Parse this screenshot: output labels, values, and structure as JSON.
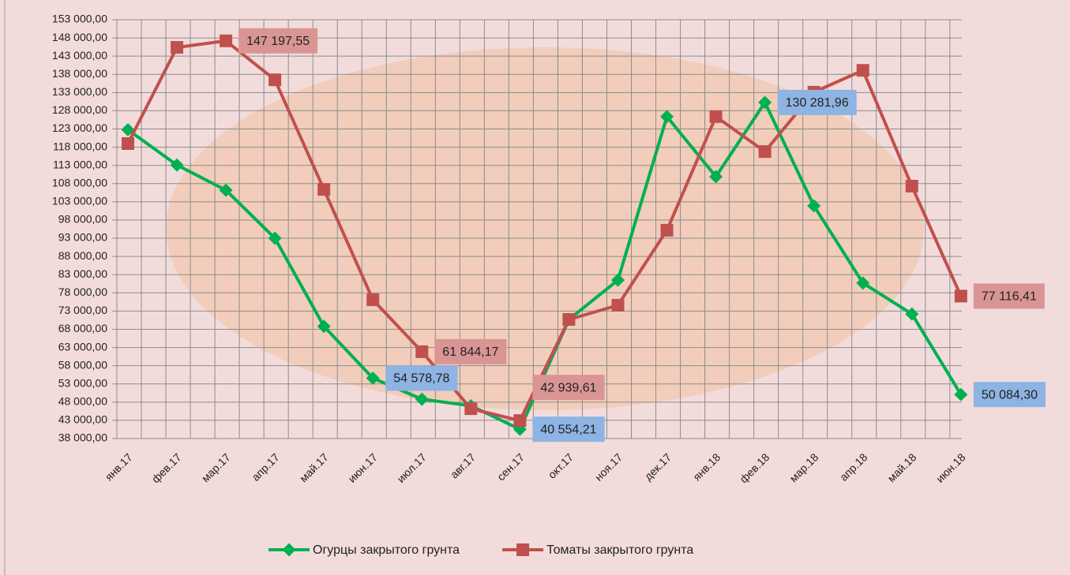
{
  "chart_data": {
    "type": "line",
    "categories": [
      "янв.17",
      "фев.17",
      "мар.17",
      "апр.17",
      "май.17",
      "июн.17",
      "июл.17",
      "авг.17",
      "сен.17",
      "окт.17",
      "ноя.17",
      "дек.17",
      "янв.18",
      "фев.18",
      "мар.18",
      "апр.18",
      "май.18",
      "июн.18"
    ],
    "series": [
      {
        "name": "Огурцы закрытого грунта",
        "color": "#00b050",
        "label_color": "#8db4e2",
        "values": [
          122800,
          113100,
          106200,
          93000,
          68800,
          54578.78,
          48800,
          47000,
          40554.21,
          70700,
          81500,
          126400,
          109900,
          130281.96,
          101900,
          80700,
          72200,
          50084.3
        ],
        "value_labels": [
          null,
          null,
          null,
          null,
          null,
          "54 578,78",
          null,
          null,
          "40 554,21",
          null,
          null,
          null,
          null,
          "130 281,96",
          null,
          null,
          null,
          "50 084,30"
        ]
      },
      {
        "name": "Томаты закрытого грунта",
        "color": "#c0504d",
        "label_color": "#d99594",
        "values": [
          119000,
          145400,
          147197.55,
          136500,
          106400,
          76100,
          61844.17,
          46200,
          42939.61,
          70700,
          74600,
          95200,
          126400,
          116800,
          133100,
          139100,
          107300,
          77116.41
        ],
        "value_labels": [
          null,
          null,
          "147 197,55",
          null,
          null,
          null,
          "61 844,17",
          null,
          "42 939,61",
          null,
          null,
          null,
          null,
          null,
          null,
          null,
          null,
          "77 116,41"
        ]
      }
    ],
    "ylim": [
      38000,
      153000
    ],
    "yticks": [
      {
        "value": 38000,
        "label": "38 000,00"
      },
      {
        "value": 43000,
        "label": "43 000,00"
      },
      {
        "value": 48000,
        "label": "48 000,00"
      },
      {
        "value": 53000,
        "label": "53 000,00"
      },
      {
        "value": 58000,
        "label": "58 000,00"
      },
      {
        "value": 63000,
        "label": "63 000,00"
      },
      {
        "value": 68000,
        "label": "68 000,00"
      },
      {
        "value": 73000,
        "label": "73 000,00"
      },
      {
        "value": 78000,
        "label": "78 000,00"
      },
      {
        "value": 83000,
        "label": "83 000,00"
      },
      {
        "value": 88000,
        "label": "88 000,00"
      },
      {
        "value": 93000,
        "label": "93 000,00"
      },
      {
        "value": 98000,
        "label": "98 000,00"
      },
      {
        "value": 103000,
        "label": "103 000,00"
      },
      {
        "value": 108000,
        "label": "108 000,00"
      },
      {
        "value": 113000,
        "label": "113 000,00"
      },
      {
        "value": 118000,
        "label": "118 000,00"
      },
      {
        "value": 123000,
        "label": "123 000,00"
      },
      {
        "value": 128000,
        "label": "128 000,00"
      },
      {
        "value": 133000,
        "label": "133 000,00"
      },
      {
        "value": 138000,
        "label": "138 000,00"
      },
      {
        "value": 143000,
        "label": "143 000,00"
      },
      {
        "value": 148000,
        "label": "148 000,00"
      },
      {
        "value": 153000,
        "label": "153 000,00"
      }
    ],
    "grid": true,
    "legend": "bottom"
  }
}
